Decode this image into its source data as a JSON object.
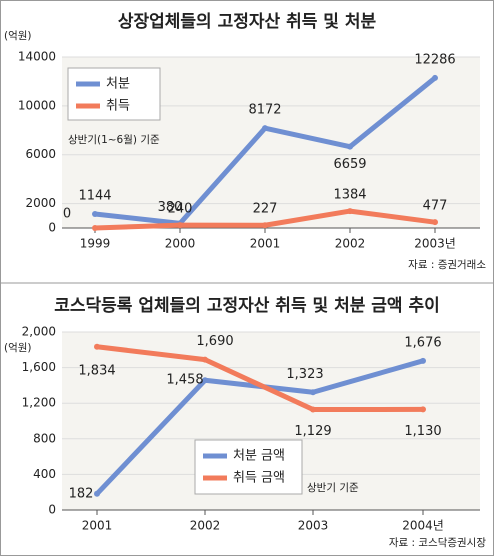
{
  "chart_data": [
    {
      "type": "line",
      "title": "상장업체들의 고정자산 취득 및 처분",
      "y_unit": "(억원)",
      "categories": [
        "1999",
        "2000",
        "2001",
        "2002",
        "2003년"
      ],
      "series": [
        {
          "name": "처분",
          "color": "#6f8fd2",
          "values": [
            1144,
            380,
            8172,
            6659,
            12286
          ]
        },
        {
          "name": "취득",
          "color": "#f27b5b",
          "values": [
            0,
            240,
            227,
            1384,
            477
          ]
        }
      ],
      "ylim": [
        0,
        14000
      ],
      "yticks": [
        0,
        2000,
        6000,
        10000,
        14000
      ],
      "grid": true,
      "note": "상반기(1~6월) 기준",
      "source": "자료 : 증권거래소"
    },
    {
      "type": "line",
      "title": "코스닥등록 업체들의 고정자산 취득 및 처분 금액 추이",
      "y_unit": "(억원)",
      "categories": [
        "2001",
        "2002",
        "2003",
        "2004년"
      ],
      "series": [
        {
          "name": "처분 금액",
          "color": "#6f8fd2",
          "values": [
            182,
            1458,
            1323,
            1676
          ],
          "value_labels": [
            "182",
            "1,458",
            "1,323",
            "1,676"
          ]
        },
        {
          "name": "취득 금액",
          "color": "#f27b5b",
          "values": [
            1834,
            1690,
            1129,
            1130
          ],
          "value_labels": [
            "1,834",
            "1,690",
            "1,129",
            "1,130"
          ]
        }
      ],
      "ylim": [
        0,
        2000
      ],
      "yticks": [
        0,
        400,
        800,
        {
          "value": 1200,
          "label": "1,200"
        },
        {
          "value": 1600,
          "label": "1,600"
        },
        {
          "value": 2000,
          "label": "2,000"
        }
      ],
      "grid": true,
      "note": "상반기 기준",
      "source": "자료 : 코스닥증권시장"
    }
  ]
}
